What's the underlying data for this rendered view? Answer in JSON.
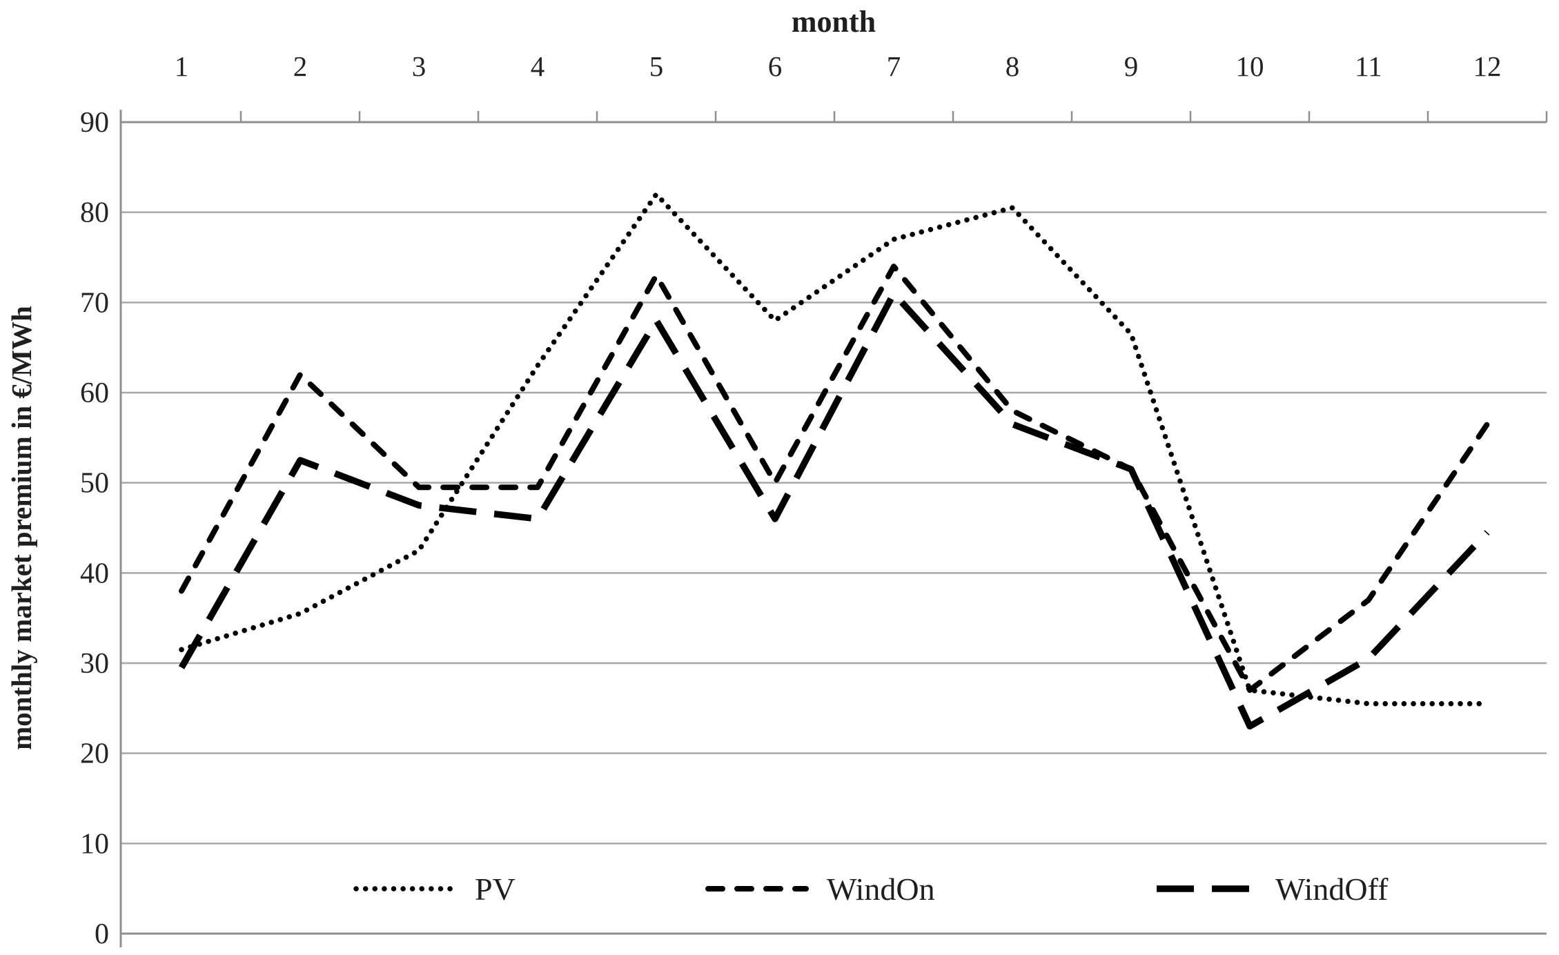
{
  "figure": {
    "kind": "black-and-white line chart",
    "background_color": "#ffffff",
    "text_color": "#1f1f1f",
    "grid_color": "#a8a8a8",
    "line_color": "#000000"
  },
  "legend": {
    "items": [
      {
        "label": "PV",
        "style": "dotted"
      },
      {
        "label": "WindOn",
        "style": "dashed"
      },
      {
        "label": "WindOff",
        "style": "long-dash"
      }
    ]
  },
  "chart_data": {
    "type": "line",
    "title": "month",
    "xlabel": "month",
    "ylabel": "monthly market premium in €/MWh",
    "x": [
      1,
      2,
      3,
      4,
      5,
      6,
      7,
      8,
      9,
      10,
      11,
      12
    ],
    "y_ticks": [
      0,
      10,
      20,
      30,
      40,
      50,
      60,
      70,
      80,
      90
    ],
    "ylim": [
      0,
      90
    ],
    "x_axis_position": "top",
    "grid": "horizontal",
    "legend_position": "bottom-inside",
    "series": [
      {
        "name": "PV",
        "style": "dotted",
        "values": [
          31.5,
          35.5,
          42.5,
          63,
          82,
          68,
          77,
          80.5,
          66.5,
          27,
          25.5,
          25.5
        ]
      },
      {
        "name": "WindOn",
        "style": "dashed",
        "values": [
          38,
          62,
          49.5,
          49.5,
          73,
          50,
          74,
          58,
          51.5,
          27,
          37,
          56.5
        ]
      },
      {
        "name": "WindOff",
        "style": "long-dash",
        "values": [
          29.5,
          52.5,
          47.5,
          46,
          68,
          46,
          71,
          56.5,
          51.5,
          23,
          30.5,
          44.5
        ]
      }
    ]
  }
}
